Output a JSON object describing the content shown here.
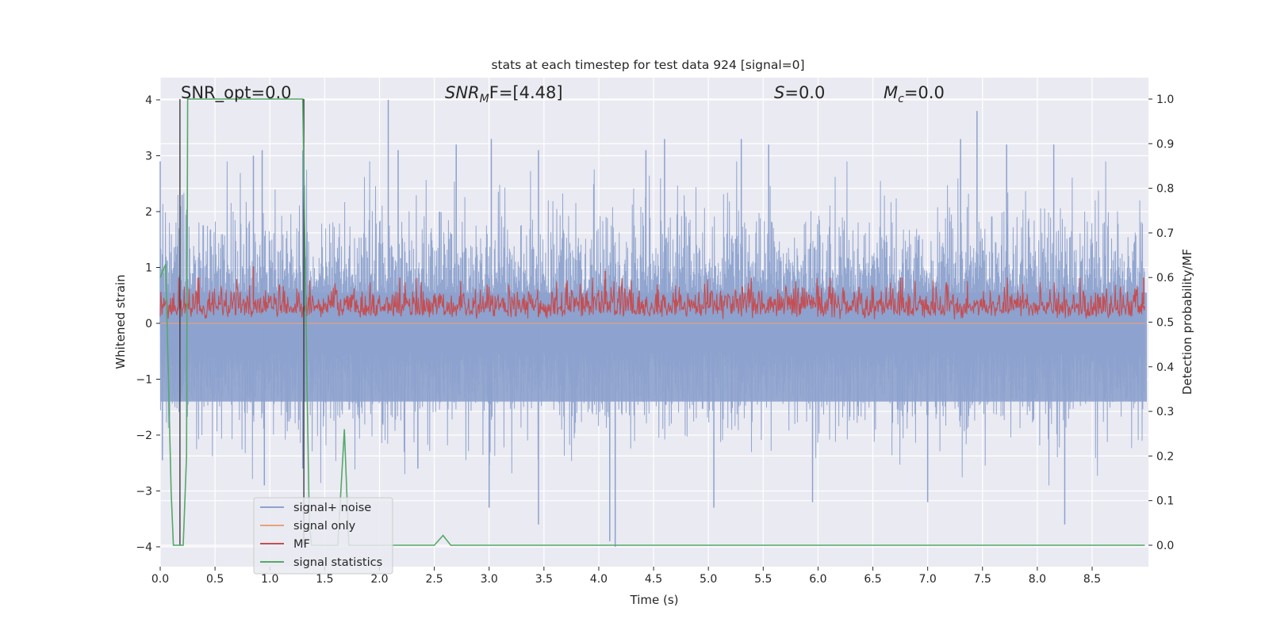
{
  "chart_data": {
    "type": "line",
    "title": "stats at each timestep for test data 924 [signal=0]",
    "xlabel": "Time (s)",
    "ylabel": "Whitened strain",
    "ylabel_right": "Detection probability/MF",
    "xlim": [
      0.0,
      8.98
    ],
    "ylim": [
      -4.4,
      4.4
    ],
    "ylim_right": [
      -0.05,
      1.05
    ],
    "xticks": [
      "0.0",
      "0.5",
      "1.0",
      "1.5",
      "2.0",
      "2.5",
      "3.0",
      "3.5",
      "4.0",
      "4.5",
      "5.0",
      "5.5",
      "6.0",
      "6.5",
      "7.0",
      "7.5",
      "8.0",
      "8.5"
    ],
    "yticks": [
      "4",
      "3",
      "2",
      "1",
      "0",
      "−1",
      "−2",
      "−3",
      "−4"
    ],
    "yticks_right": [
      "1.0",
      "0.9",
      "0.8",
      "0.7",
      "0.6",
      "0.5",
      "0.4",
      "0.3",
      "0.2",
      "0.1",
      "0.0"
    ],
    "grid": true,
    "legend_position": "lower-left",
    "annotations": [
      {
        "id": "snr-opt",
        "text": "SNR_opt=0.0"
      },
      {
        "id": "snr-mf",
        "text": "SNR_MF=[4.48]",
        "base": "SNR",
        "sub": "M",
        "rest": "F=[4.48]"
      },
      {
        "id": "s-param",
        "text": "S=0.0",
        "var": "S",
        "rest": "=0.0"
      },
      {
        "id": "mc-param",
        "text": "M_c=0.0",
        "var": "M",
        "sub": "c",
        "rest": "=0.0"
      }
    ],
    "series": [
      {
        "name": "signal+ noise",
        "color": "#8da2cd",
        "axis": "left",
        "description": "whitened strain noise, approx. uniform band between -2 and +2 with sparse peaks",
        "typical_range": [
          -2.0,
          2.0
        ],
        "notable_peaks": [
          {
            "x": 0.0,
            "y": 2.9
          },
          {
            "x": 0.2,
            "y": 2.3
          },
          {
            "x": 0.85,
            "y": 3.0
          },
          {
            "x": 0.93,
            "y": 3.1
          },
          {
            "x": 1.3,
            "y": 3.1
          },
          {
            "x": 2.08,
            "y": 4.0
          },
          {
            "x": 2.17,
            "y": 3.1
          },
          {
            "x": 2.7,
            "y": 3.2
          },
          {
            "x": 3.02,
            "y": 3.3
          },
          {
            "x": 3.45,
            "y": 3.1
          },
          {
            "x": 4.43,
            "y": 3.1
          },
          {
            "x": 4.6,
            "y": 3.3
          },
          {
            "x": 5.3,
            "y": 3.3
          },
          {
            "x": 5.55,
            "y": 3.2
          },
          {
            "x": 7.3,
            "y": 3.3
          },
          {
            "x": 7.45,
            "y": 3.8
          },
          {
            "x": 7.72,
            "y": 3.2
          },
          {
            "x": 8.15,
            "y": 3.2
          }
        ],
        "notable_troughs": [
          {
            "x": 0.02,
            "y": -2.45
          },
          {
            "x": 0.95,
            "y": -2.9
          },
          {
            "x": 1.3,
            "y": -2.6
          },
          {
            "x": 2.35,
            "y": -2.6
          },
          {
            "x": 3.0,
            "y": -3.3
          },
          {
            "x": 3.45,
            "y": -3.6
          },
          {
            "x": 4.1,
            "y": -3.9
          },
          {
            "x": 4.15,
            "y": -4.0
          },
          {
            "x": 5.05,
            "y": -3.3
          },
          {
            "x": 5.95,
            "y": -3.2
          },
          {
            "x": 7.0,
            "y": -3.2
          },
          {
            "x": 8.25,
            "y": -3.6
          }
        ]
      },
      {
        "name": "signal only",
        "color": "#e8a07e",
        "axis": "left",
        "x": [
          0.0,
          8.98
        ],
        "y": [
          0.0,
          0.0
        ]
      },
      {
        "name": "MF",
        "color": "#c44e52",
        "axis": "right",
        "description": "matched-filter output oscillating about 0.53 with range 0.50-0.62",
        "typical_range": [
          0.505,
          0.585
        ],
        "notable_peaks": [
          {
            "x": 0.85,
            "y": 0.625
          },
          {
            "x": 4.06,
            "y": 0.615
          },
          {
            "x": 8.97,
            "y": 0.6
          }
        ]
      },
      {
        "name": "signal statistics",
        "color": "#55a868",
        "axis": "right",
        "x": [
          0.0,
          0.05,
          0.1,
          0.12,
          0.17,
          0.21,
          0.24,
          0.25,
          0.4,
          1.3,
          1.34,
          1.36,
          1.38,
          1.39,
          1.6,
          1.62,
          1.68,
          1.72,
          1.76,
          2.5,
          2.58,
          2.65,
          8.98
        ],
        "y": [
          0.6,
          0.63,
          0.12,
          0.0,
          0.0,
          0.0,
          0.2,
          1.0,
          1.0,
          1.0,
          0.35,
          0.05,
          0.0,
          0.0,
          0.0,
          0.0,
          0.26,
          0.0,
          0.0,
          0.0,
          0.022,
          0.0,
          0.0
        ]
      }
    ],
    "vertical_lines": [
      {
        "x": 0.18,
        "color": "#333333"
      },
      {
        "x": 1.31,
        "color": "#333333"
      }
    ]
  }
}
